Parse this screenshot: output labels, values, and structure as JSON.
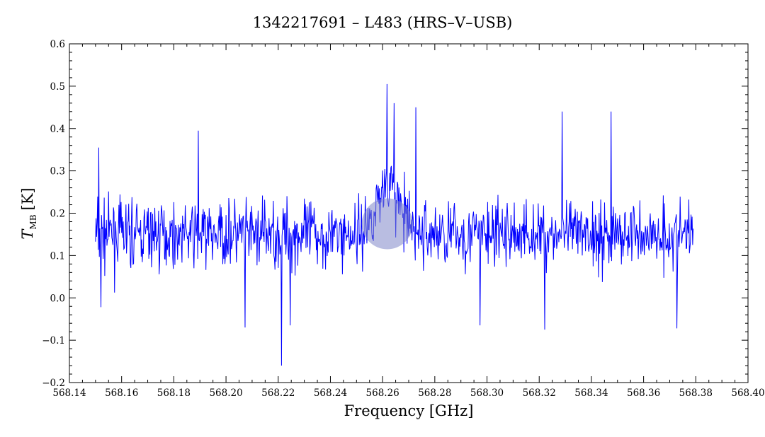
{
  "chart_data": {
    "type": "line",
    "title": "1342217691 – L483 (HRS–V–USB)",
    "xlabel": "Frequency [GHz]",
    "ylabel_symbol": "T",
    "ylabel_subscript": "MB",
    "ylabel_unit": "[K]",
    "xlim": [
      568.14,
      568.4
    ],
    "ylim": [
      -0.2,
      0.6
    ],
    "x_ticks": [
      "568.14",
      "568.16",
      "568.18",
      "568.20",
      "568.22",
      "568.24",
      "568.26",
      "568.28",
      "568.30",
      "568.32",
      "568.34",
      "568.36",
      "568.38",
      "568.40"
    ],
    "y_ticks": [
      "−0.2",
      "−0.1",
      "0.0",
      "0.1",
      "0.2",
      "0.3",
      "0.4",
      "0.5",
      "0.6"
    ],
    "series": [
      {
        "color": "#0000ff",
        "x_start": 568.15,
        "x_end": 568.379,
        "n_points": 1100,
        "baseline": 0.15,
        "noise_peak_to_peak": 0.3,
        "feature_center": 568.262,
        "feature_peak": 0.27,
        "anchors": [
          {
            "x": 568.2213,
            "y": -0.16
          },
          {
            "x": 568.2617,
            "y": 0.505
          },
          {
            "x": 568.2643,
            "y": 0.46
          },
          {
            "x": 568.2728,
            "y": 0.45
          },
          {
            "x": 568.2245,
            "y": -0.065
          },
          {
            "x": 568.2074,
            "y": -0.07
          },
          {
            "x": 568.2974,
            "y": -0.065
          },
          {
            "x": 568.3222,
            "y": -0.075
          },
          {
            "x": 568.3727,
            "y": -0.072
          },
          {
            "x": 568.3288,
            "y": 0.44
          },
          {
            "x": 568.3476,
            "y": 0.44
          },
          {
            "x": 568.1893,
            "y": 0.395
          },
          {
            "x": 568.1512,
            "y": 0.355
          },
          {
            "x": 568.152,
            "y": -0.022
          }
        ]
      }
    ],
    "marker": {
      "x": 568.2618,
      "y": 0.175,
      "color": "#7f86c8"
    },
    "grid": false,
    "legend": "none"
  }
}
